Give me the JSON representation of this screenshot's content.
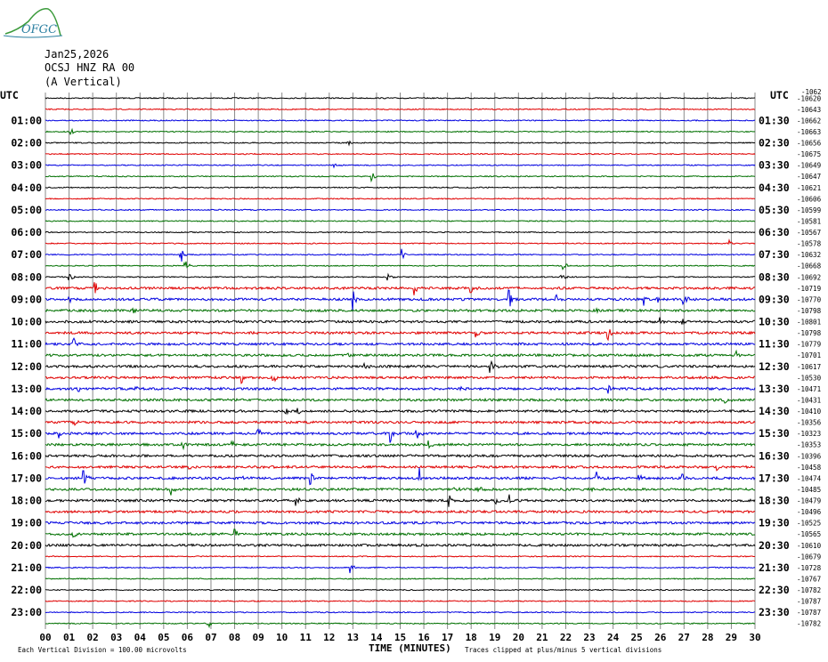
{
  "logo": {
    "text": "OFGC",
    "color": "#2a7fa0",
    "mountain_color": "#3a9a3a"
  },
  "header": {
    "date": "Jan25,2026",
    "station": "OCSJ HNZ RA 00",
    "component": "(A Vertical)"
  },
  "chart_data": {
    "type": "seismogram-helicorder",
    "title_lines": [
      "Jan25,2026",
      "OCSJ HNZ RA 00",
      "(A Vertical)"
    ],
    "left_axis_label": "UTC",
    "right_axis_label": "UTC",
    "right_top_value": "-1062",
    "xlabel": "TIME (MINUTES)",
    "x_ticks": [
      "00",
      "01",
      "02",
      "03",
      "04",
      "05",
      "06",
      "07",
      "08",
      "09",
      "10",
      "11",
      "12",
      "13",
      "14",
      "15",
      "16",
      "17",
      "18",
      "19",
      "20",
      "21",
      "22",
      "23",
      "24",
      "25",
      "26",
      "27",
      "28",
      "29",
      "30"
    ],
    "xlim": [
      0,
      30
    ],
    "traces_per_hour": 2,
    "trace_count": 48,
    "trace_colors": [
      "#000000",
      "#e00000",
      "#0000e0",
      "#007000"
    ],
    "grid": true,
    "left_hour_labels": [
      "01:00",
      "02:00",
      "03:00",
      "04:00",
      "05:00",
      "06:00",
      "07:00",
      "08:00",
      "09:00",
      "10:00",
      "11:00",
      "12:00",
      "13:00",
      "14:00",
      "15:00",
      "16:00",
      "17:00",
      "18:00",
      "19:00",
      "20:00",
      "21:00",
      "22:00",
      "23:00"
    ],
    "right_hour_labels": [
      "01:30",
      "02:30",
      "03:30",
      "04:30",
      "05:30",
      "06:30",
      "07:30",
      "08:30",
      "09:30",
      "10:30",
      "11:30",
      "12:30",
      "13:30",
      "14:30",
      "15:30",
      "16:30",
      "17:30",
      "18:30",
      "19:30",
      "20:30",
      "21:30",
      "22:30",
      "23:30"
    ],
    "trace_offsets": [
      "-10620",
      "-10643",
      "-10662",
      "-10663",
      "-10656",
      "-10675",
      "-10649",
      "-10647",
      "-10621",
      "-10606",
      "-10599",
      "-10581",
      "-10567",
      "-10578",
      "-10632",
      "-10668",
      "-10692",
      "-10719",
      "-10770",
      "-10798",
      "-10801",
      "-10798",
      "-10779",
      "-10701",
      "-10617",
      "-10530",
      "-10471",
      "-10431",
      "-10410",
      "-10356",
      "-10323",
      "-10353",
      "-10396",
      "-10458",
      "-10474",
      "-10485",
      "-10479",
      "-10496",
      "-10525",
      "-10565",
      "-10610",
      "-10679",
      "-10728",
      "-10767",
      "-10782",
      "-10787",
      "-10787",
      "-10782"
    ],
    "events": [
      {
        "trace": 3,
        "minute": 1.1,
        "amp": 3
      },
      {
        "trace": 4,
        "minute": 12.8,
        "amp": 2
      },
      {
        "trace": 6,
        "minute": 12.2,
        "amp": 2
      },
      {
        "trace": 7,
        "minute": 13.8,
        "amp": 5
      },
      {
        "trace": 13,
        "minute": 28.9,
        "amp": 3
      },
      {
        "trace": 14,
        "minute": 5.7,
        "amp": 9
      },
      {
        "trace": 14,
        "minute": 15.1,
        "amp": 5
      },
      {
        "trace": 15,
        "minute": 5.9,
        "amp": 5
      },
      {
        "trace": 15,
        "minute": 21.9,
        "amp": 3
      },
      {
        "trace": 16,
        "minute": 1.0,
        "amp": 5
      },
      {
        "trace": 16,
        "minute": 14.5,
        "amp": 3
      },
      {
        "trace": 16,
        "minute": 21.8,
        "amp": 4
      },
      {
        "trace": 17,
        "minute": 2.1,
        "amp": 5
      },
      {
        "trace": 17,
        "minute": 15.6,
        "amp": 5
      },
      {
        "trace": 17,
        "minute": 18.0,
        "amp": 4
      },
      {
        "trace": 18,
        "minute": 1.0,
        "amp": 3
      },
      {
        "trace": 18,
        "minute": 13.0,
        "amp": 8
      },
      {
        "trace": 18,
        "minute": 19.6,
        "amp": 8
      },
      {
        "trace": 18,
        "minute": 21.6,
        "amp": 3
      },
      {
        "trace": 18,
        "minute": 25.3,
        "amp": 4
      },
      {
        "trace": 18,
        "minute": 25.9,
        "amp": 3
      },
      {
        "trace": 18,
        "minute": 27.0,
        "amp": 4
      },
      {
        "trace": 19,
        "minute": 3.7,
        "amp": 3
      },
      {
        "trace": 19,
        "minute": 23.3,
        "amp": 3
      },
      {
        "trace": 20,
        "minute": 26.0,
        "amp": 4
      },
      {
        "trace": 20,
        "minute": 26.9,
        "amp": 3
      },
      {
        "trace": 21,
        "minute": 18.2,
        "amp": 4
      },
      {
        "trace": 21,
        "minute": 23.8,
        "amp": 5
      },
      {
        "trace": 22,
        "minute": 1.2,
        "amp": 7
      },
      {
        "trace": 23,
        "minute": 12.8,
        "amp": 2
      },
      {
        "trace": 23,
        "minute": 29.2,
        "amp": 4
      },
      {
        "trace": 24,
        "minute": 13.5,
        "amp": 5
      },
      {
        "trace": 24,
        "minute": 18.8,
        "amp": 6
      },
      {
        "trace": 25,
        "minute": 8.3,
        "amp": 5
      },
      {
        "trace": 25,
        "minute": 9.6,
        "amp": 5
      },
      {
        "trace": 26,
        "minute": 1.4,
        "amp": 3
      },
      {
        "trace": 26,
        "minute": 3.8,
        "amp": 4
      },
      {
        "trace": 26,
        "minute": 17.5,
        "amp": 4
      },
      {
        "trace": 26,
        "minute": 23.8,
        "amp": 4
      },
      {
        "trace": 27,
        "minute": 28.7,
        "amp": 7
      },
      {
        "trace": 28,
        "minute": 10.1,
        "amp": 3
      },
      {
        "trace": 28,
        "minute": 10.7,
        "amp": 4
      },
      {
        "trace": 29,
        "minute": 1.2,
        "amp": 3
      },
      {
        "trace": 30,
        "minute": 0.6,
        "amp": 4
      },
      {
        "trace": 30,
        "minute": 9.0,
        "amp": 4
      },
      {
        "trace": 30,
        "minute": 14.6,
        "amp": 6
      },
      {
        "trace": 30,
        "minute": 15.7,
        "amp": 5
      },
      {
        "trace": 31,
        "minute": 5.8,
        "amp": 4
      },
      {
        "trace": 31,
        "minute": 7.9,
        "amp": 4
      },
      {
        "trace": 31,
        "minute": 16.2,
        "amp": 4
      },
      {
        "trace": 33,
        "minute": 6.0,
        "amp": 3
      },
      {
        "trace": 33,
        "minute": 18.3,
        "amp": 3
      },
      {
        "trace": 33,
        "minute": 28.4,
        "amp": 3
      },
      {
        "trace": 34,
        "minute": 1.6,
        "amp": 6
      },
      {
        "trace": 34,
        "minute": 8.3,
        "amp": 4
      },
      {
        "trace": 34,
        "minute": 11.2,
        "amp": 6
      },
      {
        "trace": 34,
        "minute": 15.8,
        "amp": 8
      },
      {
        "trace": 34,
        "minute": 23.3,
        "amp": 4
      },
      {
        "trace": 34,
        "minute": 25.1,
        "amp": 4
      },
      {
        "trace": 34,
        "minute": 26.9,
        "amp": 4
      },
      {
        "trace": 35,
        "minute": 5.3,
        "amp": 5
      },
      {
        "trace": 35,
        "minute": 17.3,
        "amp": 5
      },
      {
        "trace": 35,
        "minute": 18.3,
        "amp": 4
      },
      {
        "trace": 35,
        "minute": 23.1,
        "amp": 3
      },
      {
        "trace": 36,
        "minute": 10.6,
        "amp": 4
      },
      {
        "trace": 36,
        "minute": 17.1,
        "amp": 5
      },
      {
        "trace": 36,
        "minute": 19.0,
        "amp": 5
      },
      {
        "trace": 36,
        "minute": 19.6,
        "amp": 5
      },
      {
        "trace": 39,
        "minute": 1.2,
        "amp": 3
      },
      {
        "trace": 39,
        "minute": 8.0,
        "amp": 5
      },
      {
        "trace": 42,
        "minute": 12.9,
        "amp": 4
      },
      {
        "trace": 47,
        "minute": 6.9,
        "amp": 3
      }
    ],
    "footer_left": "Each Vertical Division =  100.00 microvolts",
    "footer_right": "Traces clipped at plus/minus 5 vertical divisions"
  }
}
